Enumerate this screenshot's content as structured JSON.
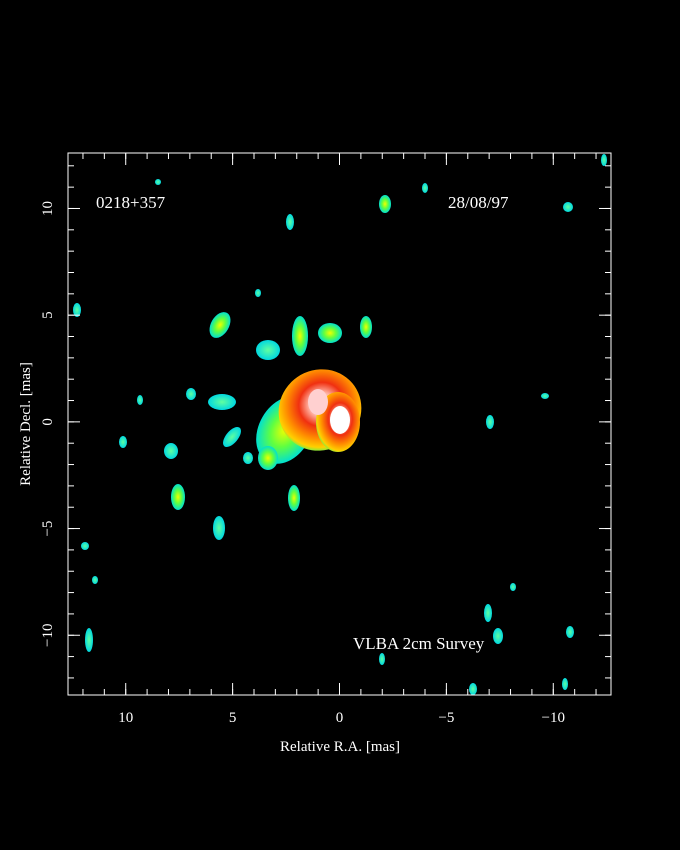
{
  "chart_data": {
    "type": "image",
    "annotations": [
      "0218+357",
      "28/08/97",
      "VLBA 2cm Survey"
    ],
    "xlabel": "Relative R.A. [mas]",
    "ylabel": "Relative Decl. [mas]",
    "xlim": [
      12.7,
      -12.7
    ],
    "ylim": [
      -12.8,
      12.6
    ],
    "xticks": [
      10,
      5,
      0,
      {
        "value": -5,
        "label": "−5"
      },
      {
        "value": -10,
        "label": "−10"
      }
    ],
    "yticks": [
      {
        "value": -10,
        "label": "−10"
      },
      {
        "value": -5,
        "label": "−5"
      },
      0,
      5,
      10
    ],
    "minor_tick_step": 1
  }
}
